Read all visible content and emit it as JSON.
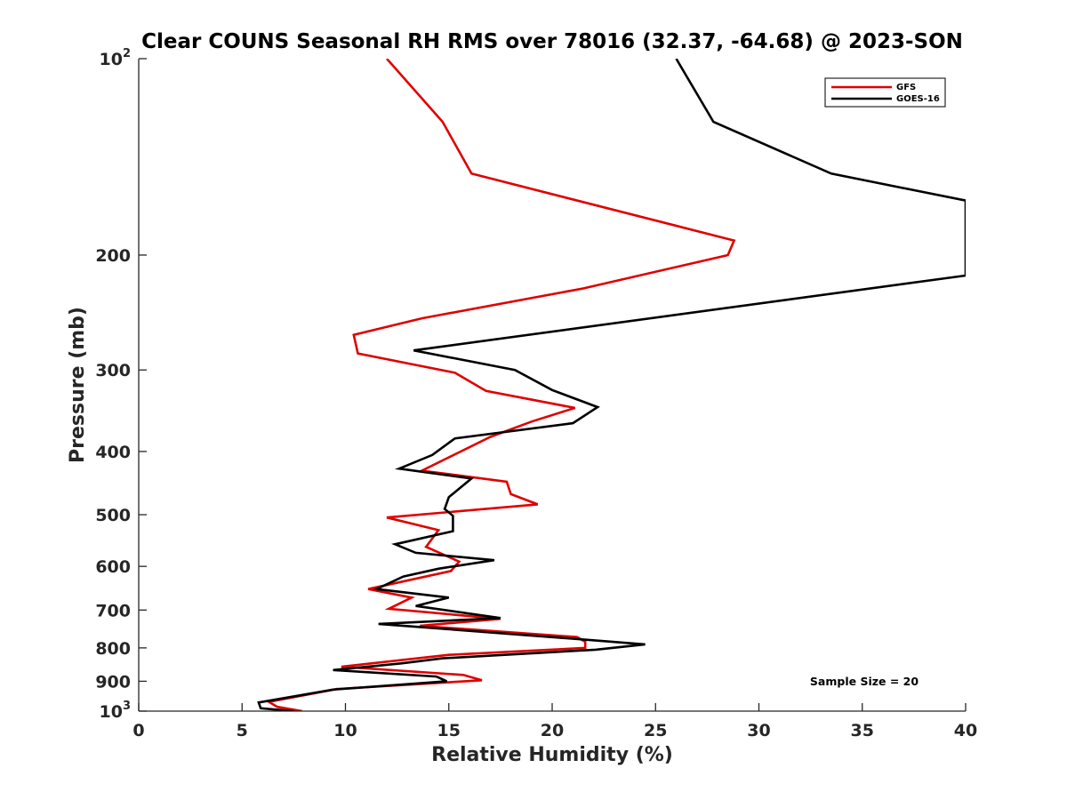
{
  "chart_data": {
    "type": "line",
    "title": "Clear COUNS Seasonal RH RMS over 78016 (32.37, -64.68) @ 2023-SON",
    "xlabel": "Relative Humidity (%)",
    "ylabel": "Pressure (mb)",
    "xlim": [
      0,
      40
    ],
    "ylim": [
      100,
      1000
    ],
    "yscale": "log",
    "ydirection": "reverse",
    "grid": false,
    "legend_position": "top-right",
    "x_ticks": [
      0,
      5,
      10,
      15,
      20,
      25,
      30,
      35,
      40
    ],
    "x_tick_labels": [
      "0",
      "5",
      "10",
      "15",
      "20",
      "25",
      "30",
      "35",
      "40"
    ],
    "y_ticks": [
      100,
      200,
      300,
      400,
      500,
      600,
      700,
      800,
      900,
      1000
    ],
    "y_tick_labels": [
      {
        "base": "10",
        "exp": "2"
      },
      {
        "base": "200",
        "exp": ""
      },
      {
        "base": "300",
        "exp": ""
      },
      {
        "base": "400",
        "exp": ""
      },
      {
        "base": "500",
        "exp": ""
      },
      {
        "base": "600",
        "exp": ""
      },
      {
        "base": "700",
        "exp": ""
      },
      {
        "base": "800",
        "exp": ""
      },
      {
        "base": "900",
        "exp": ""
      },
      {
        "base": "10",
        "exp": "3"
      }
    ],
    "series": [
      {
        "name": "GFS",
        "color": "#e00000",
        "points": [
          [
            12.0,
            100
          ],
          [
            14.7,
            125
          ],
          [
            16.1,
            150
          ],
          [
            28.8,
            190
          ],
          [
            28.5,
            200
          ],
          [
            21.5,
            225
          ],
          [
            13.7,
            250
          ],
          [
            10.4,
            265
          ],
          [
            10.6,
            283
          ],
          [
            15.3,
            303
          ],
          [
            16.8,
            323
          ],
          [
            21.1,
            343
          ],
          [
            19.0,
            360
          ],
          [
            17.0,
            380
          ],
          [
            13.7,
            428
          ],
          [
            17.8,
            445
          ],
          [
            18.0,
            465
          ],
          [
            19.3,
            482
          ],
          [
            12.0,
            505
          ],
          [
            14.5,
            528
          ],
          [
            13.9,
            560
          ],
          [
            15.5,
            590
          ],
          [
            15.1,
            610
          ],
          [
            11.1,
            650
          ],
          [
            13.2,
            670
          ],
          [
            12.1,
            697
          ],
          [
            17.5,
            722
          ],
          [
            13.6,
            740
          ],
          [
            21.2,
            770
          ],
          [
            21.6,
            783
          ],
          [
            21.6,
            800
          ],
          [
            15.0,
            820
          ],
          [
            9.8,
            855
          ],
          [
            15.7,
            880
          ],
          [
            16.6,
            897
          ],
          [
            9.6,
            925
          ],
          [
            6.3,
            968
          ],
          [
            6.7,
            985
          ],
          [
            7.9,
            1000
          ]
        ]
      },
      {
        "name": "GOES-16",
        "color": "#000000",
        "points": [
          [
            26.0,
            100
          ],
          [
            27.8,
            125
          ],
          [
            33.5,
            150
          ],
          [
            40.0,
            165
          ],
          [
            40.0,
            215
          ],
          [
            13.3,
            280
          ],
          [
            18.2,
            300
          ],
          [
            20.0,
            322
          ],
          [
            22.2,
            342
          ],
          [
            21.0,
            362
          ],
          [
            15.3,
            382
          ],
          [
            14.2,
            405
          ],
          [
            12.6,
            425
          ],
          [
            16.1,
            440
          ],
          [
            15.0,
            470
          ],
          [
            14.8,
            490
          ],
          [
            15.2,
            502
          ],
          [
            15.2,
            530
          ],
          [
            12.4,
            555
          ],
          [
            13.4,
            572
          ],
          [
            17.2,
            587
          ],
          [
            14.5,
            605
          ],
          [
            12.8,
            622
          ],
          [
            11.5,
            650
          ],
          [
            15.0,
            670
          ],
          [
            13.4,
            690
          ],
          [
            17.5,
            720
          ],
          [
            11.6,
            735
          ],
          [
            21.1,
            775
          ],
          [
            24.5,
            790
          ],
          [
            22.1,
            805
          ],
          [
            14.7,
            830
          ],
          [
            12.7,
            845
          ],
          [
            9.4,
            865
          ],
          [
            14.4,
            885
          ],
          [
            14.9,
            900
          ],
          [
            9.4,
            927
          ],
          [
            5.8,
            970
          ],
          [
            5.9,
            990
          ],
          [
            7.5,
            1000
          ]
        ]
      }
    ],
    "annotations": [
      {
        "text": "Sample Size = 20",
        "x": 35.9,
        "y": 900
      }
    ]
  }
}
